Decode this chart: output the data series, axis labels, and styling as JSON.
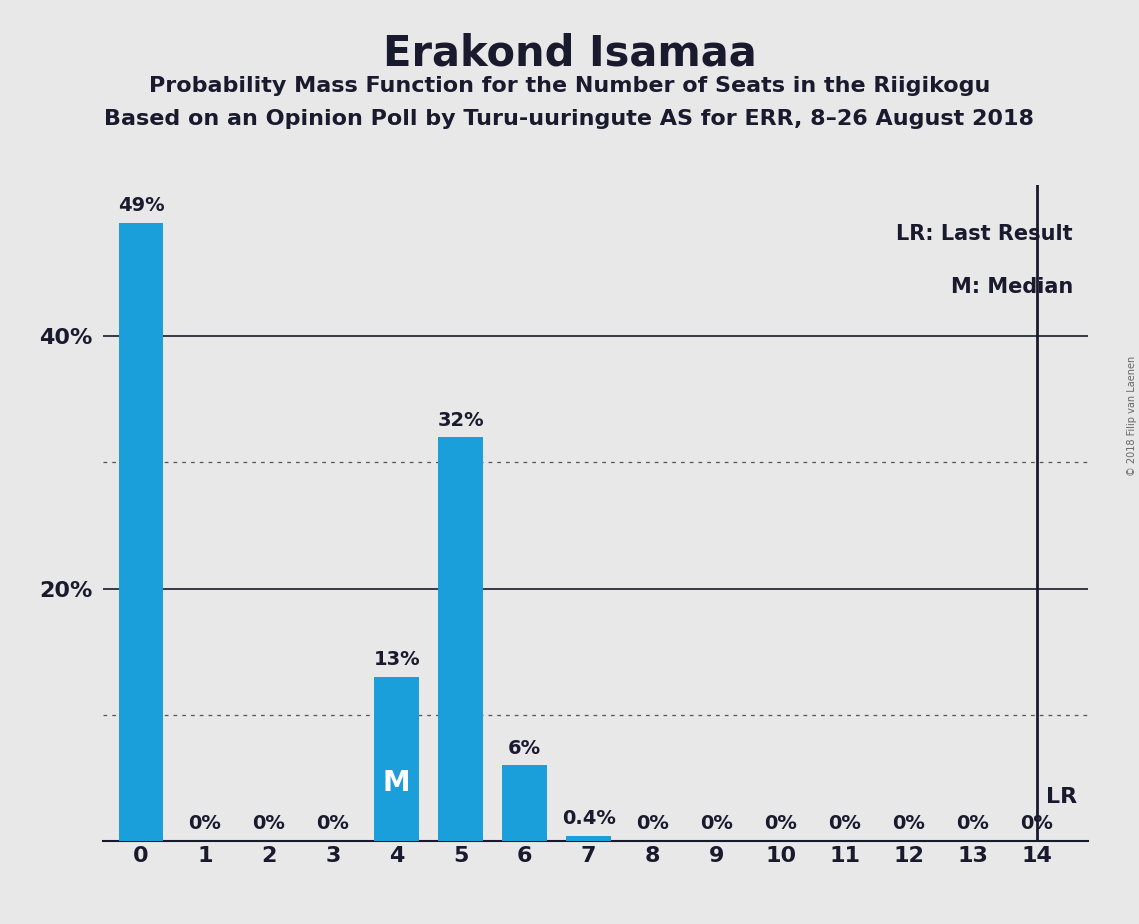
{
  "title": "Erakond Isamaa",
  "subtitle1": "Probability Mass Function for the Number of Seats in the Riigikogu",
  "subtitle2": "Based on an Opinion Poll by Turu-uuringute AS for ERR, 8–26 August 2018",
  "copyright": "© 2018 Filip van Laenen",
  "categories": [
    0,
    1,
    2,
    3,
    4,
    5,
    6,
    7,
    8,
    9,
    10,
    11,
    12,
    13,
    14
  ],
  "values": [
    49,
    0,
    0,
    0,
    13,
    32,
    6,
    0.4,
    0,
    0,
    0,
    0,
    0,
    0,
    0
  ],
  "labels": [
    "49%",
    "0%",
    "0%",
    "0%",
    "13%",
    "32%",
    "6%",
    "0.4%",
    "0%",
    "0%",
    "0%",
    "0%",
    "0%",
    "0%",
    "0%"
  ],
  "bar_color": "#1a9fda",
  "background_color": "#e8e8e8",
  "median_seat": 4,
  "lr_seat": 14,
  "legend_lr": "LR: Last Result",
  "legend_m": "M: Median",
  "ylim": [
    0,
    52
  ],
  "solid_gridlines": [
    20,
    40
  ],
  "dotted_gridlines": [
    10,
    30
  ],
  "title_fontsize": 30,
  "subtitle_fontsize": 16,
  "axis_tick_fontsize": 16,
  "annotation_fontsize": 14,
  "legend_fontsize": 15,
  "lr_label_fontsize": 16,
  "m_label_fontsize": 20,
  "copyright_fontsize": 7
}
